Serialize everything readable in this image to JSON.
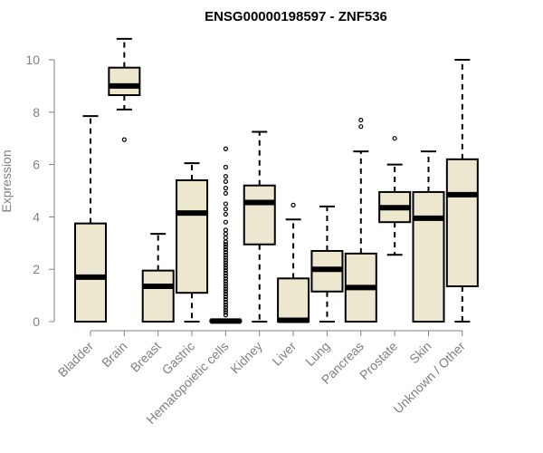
{
  "chart_data": {
    "type": "boxplot",
    "title": "ENSG00000198597 - ZNF536",
    "xlabel": "",
    "ylabel": "Expression",
    "ylim": [
      0,
      10
    ],
    "yticks": [
      0,
      2,
      4,
      6,
      8,
      10
    ],
    "box_fill": "#ede7cf",
    "categories": [
      "Bladder",
      "Brain",
      "Breast",
      "Gastric",
      "Hematopoietic cells",
      "Kidney",
      "Liver",
      "Lung",
      "Pancreas",
      "Prostate",
      "Skin",
      "Unknown / Other"
    ],
    "boxes": [
      {
        "min": 0,
        "q1": 0,
        "median": 1.7,
        "q3": 3.75,
        "max": 7.85,
        "outliers": []
      },
      {
        "min": 8.1,
        "q1": 8.65,
        "median": 9.0,
        "q3": 9.7,
        "max": 10.8,
        "outliers": [
          6.95
        ]
      },
      {
        "min": 0,
        "q1": 0,
        "median": 1.35,
        "q3": 1.95,
        "max": 3.35,
        "outliers": []
      },
      {
        "min": 0,
        "q1": 1.1,
        "median": 4.15,
        "q3": 5.4,
        "max": 6.05,
        "outliers": []
      },
      {
        "min": 0,
        "q1": 0,
        "median": 0.02,
        "q3": 0.05,
        "max": 0.08,
        "outliers": [
          0.25,
          0.35,
          0.45,
          0.55,
          0.65,
          0.75,
          0.85,
          0.95,
          1.05,
          1.15,
          1.25,
          1.35,
          1.45,
          1.55,
          1.65,
          1.75,
          1.85,
          1.95,
          2.05,
          2.15,
          2.25,
          2.35,
          2.45,
          2.55,
          2.65,
          2.75,
          2.85,
          2.95,
          3.05,
          3.2,
          3.35,
          3.5,
          3.8,
          4.1,
          4.3,
          4.5,
          4.9,
          5.1,
          5.35,
          5.55,
          5.9,
          6.6
        ]
      },
      {
        "min": 0,
        "q1": 2.95,
        "median": 4.55,
        "q3": 5.2,
        "max": 7.25,
        "outliers": []
      },
      {
        "min": 0,
        "q1": 0,
        "median": 0.05,
        "q3": 1.65,
        "max": 3.9,
        "outliers": [
          4.45
        ]
      },
      {
        "min": 0,
        "q1": 1.15,
        "median": 2.0,
        "q3": 2.7,
        "max": 4.4,
        "outliers": []
      },
      {
        "min": 0,
        "q1": 0,
        "median": 1.3,
        "q3": 2.6,
        "max": 6.5,
        "outliers": [
          7.45,
          7.7
        ]
      },
      {
        "min": 2.55,
        "q1": 3.8,
        "median": 4.35,
        "q3": 4.95,
        "max": 6.0,
        "outliers": [
          7.0
        ]
      },
      {
        "min": 0,
        "q1": 0,
        "median": 3.95,
        "q3": 4.95,
        "max": 6.5,
        "outliers": []
      },
      {
        "min": 0,
        "q1": 1.35,
        "median": 4.85,
        "q3": 6.2,
        "max": 10.0,
        "outliers": []
      }
    ]
  }
}
